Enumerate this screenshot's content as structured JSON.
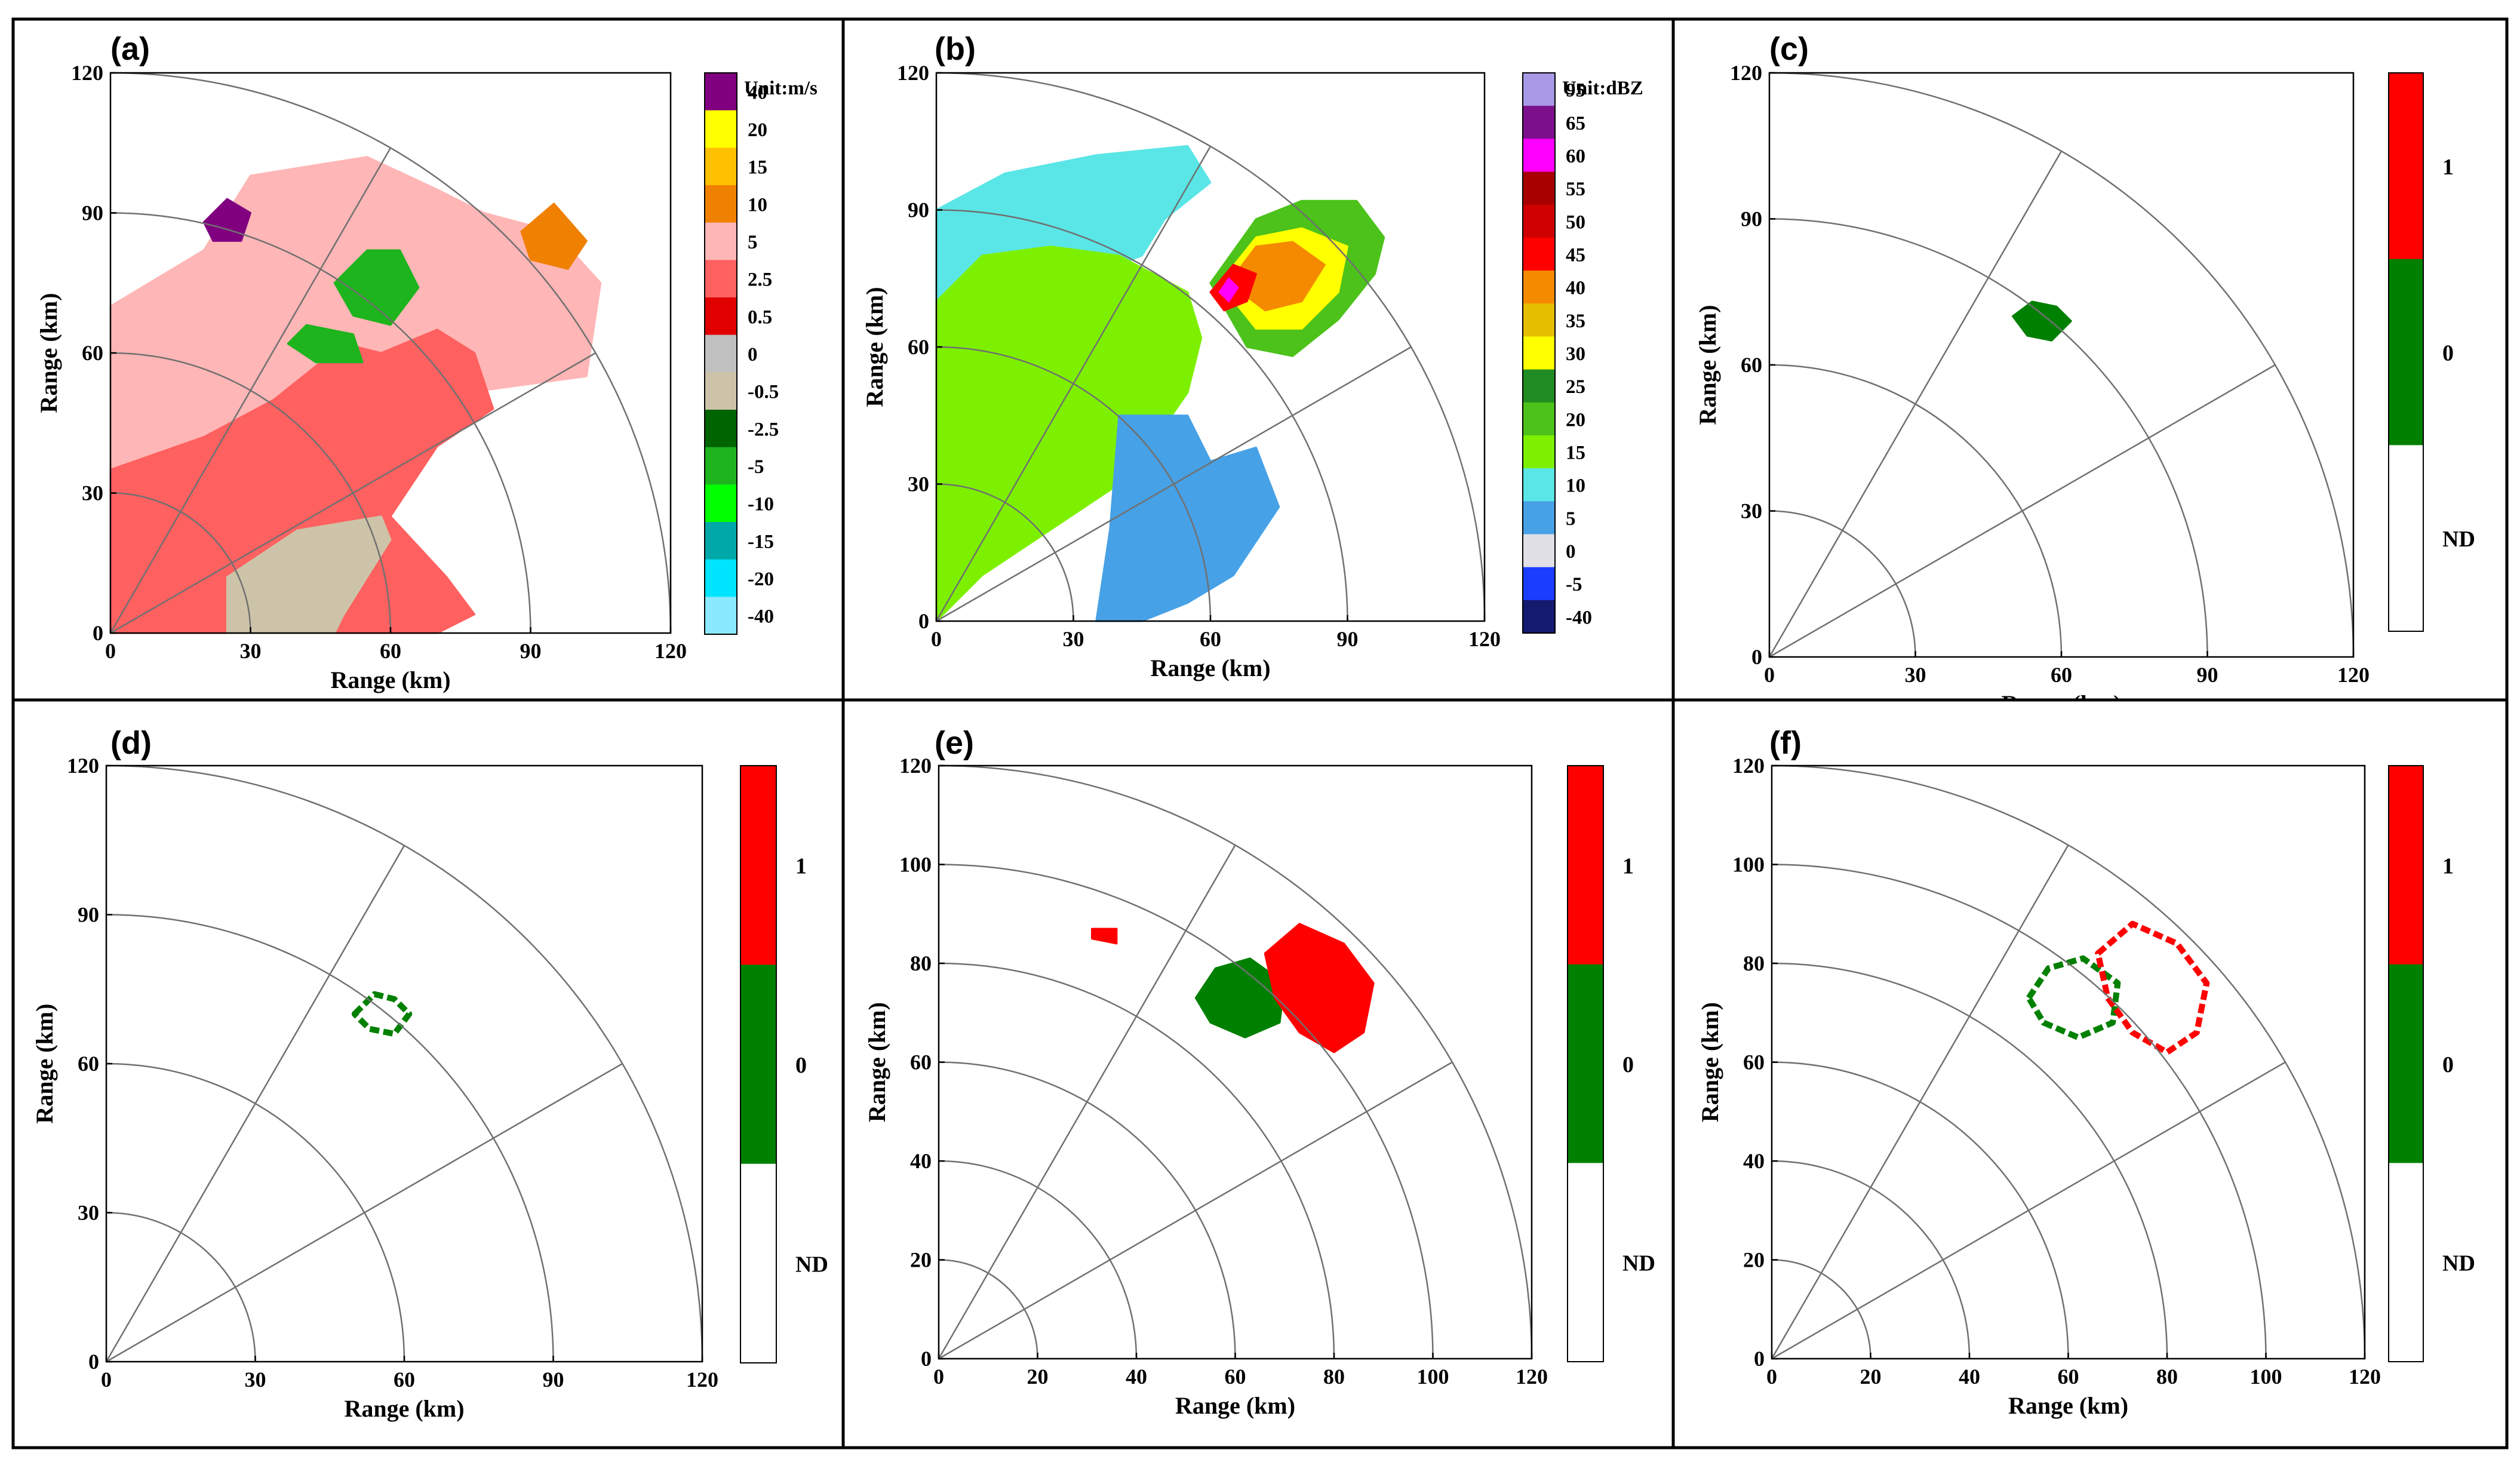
{
  "chart_data": [
    {
      "type": "heatmap",
      "panel": "(a)",
      "title": "",
      "xlabel": "Range (km)",
      "ylabel": "Range (km)",
      "xticks": [
        "0",
        "30",
        "60",
        "90",
        "120"
      ],
      "yticks": [
        "0",
        "30",
        "60",
        "90",
        "120"
      ],
      "xlim": [
        0,
        120
      ],
      "ylim": [
        0,
        120
      ],
      "range_rings_km": [
        30,
        60,
        90,
        120
      ],
      "radials_deg": [
        30,
        60
      ],
      "colorbar": {
        "unit_label": "Unit:m/s",
        "labels": [
          "40",
          "20",
          "15",
          "10",
          "5",
          "2.5",
          "0.5",
          "0",
          "-0.5",
          "-2.5",
          "-5",
          "-10",
          "-15",
          "-20",
          "-40"
        ],
        "colors": [
          "#800080",
          "#FFFF00",
          "#FFC000",
          "#F08000",
          "#FFB6B6",
          "#FF6060",
          "#E00000",
          "#C0C0C0",
          "#CDC3A8",
          "#006400",
          "#1EB41E",
          "#00FF00",
          "#00A8A8",
          "#00E5FF",
          "#8AE8FF"
        ]
      },
      "regions": [
        {
          "name": "light-pink-area",
          "color": "#FFB6B6",
          "points": [
            [
              0,
              70
            ],
            [
              20,
              82
            ],
            [
              30,
              98
            ],
            [
              55,
              102
            ],
            [
              70,
              95
            ],
            [
              80,
              90
            ],
            [
              95,
              86
            ],
            [
              105,
              75
            ],
            [
              102,
              55
            ],
            [
              80,
              52
            ],
            [
              62,
              48
            ],
            [
              50,
              38
            ],
            [
              30,
              30
            ],
            [
              15,
              20
            ],
            [
              0,
              20
            ]
          ]
        },
        {
          "name": "red-area",
          "color": "#FF6060",
          "points": [
            [
              0,
              35
            ],
            [
              20,
              42
            ],
            [
              35,
              50
            ],
            [
              50,
              62
            ],
            [
              58,
              60
            ],
            [
              70,
              65
            ],
            [
              78,
              60
            ],
            [
              82,
              48
            ],
            [
              70,
              40
            ],
            [
              60,
              25
            ],
            [
              72,
              12
            ],
            [
              78,
              4
            ],
            [
              70,
              0
            ],
            [
              0,
              0
            ]
          ]
        },
        {
          "name": "beige-area",
          "color": "#CDC3A8",
          "points": [
            [
              25,
              0
            ],
            [
              25,
              12
            ],
            [
              40,
              22
            ],
            [
              58,
              25
            ],
            [
              60,
              20
            ],
            [
              55,
              12
            ],
            [
              50,
              4
            ],
            [
              48,
              0
            ]
          ]
        },
        {
          "name": "orange-cell-ne",
          "color": "#F08000",
          "points": [
            [
              88,
              86
            ],
            [
              95,
              92
            ],
            [
              102,
              84
            ],
            [
              98,
              78
            ],
            [
              90,
              80
            ]
          ]
        },
        {
          "name": "purple-cell",
          "color": "#800080",
          "points": [
            [
              20,
              88
            ],
            [
              25,
              93
            ],
            [
              30,
              90
            ],
            [
              28,
              84
            ],
            [
              22,
              84
            ]
          ]
        },
        {
          "name": "green-cell",
          "color": "#1EB41E",
          "points": [
            [
              48,
              75
            ],
            [
              55,
              82
            ],
            [
              62,
              82
            ],
            [
              66,
              74
            ],
            [
              60,
              66
            ],
            [
              52,
              68
            ]
          ]
        },
        {
          "name": "green-cell-small",
          "color": "#1EB41E",
          "points": [
            [
              38,
              62
            ],
            [
              42,
              66
            ],
            [
              52,
              64
            ],
            [
              54,
              58
            ],
            [
              44,
              58
            ]
          ]
        }
      ]
    },
    {
      "type": "heatmap",
      "panel": "(b)",
      "title": "",
      "xlabel": "Range (km)",
      "ylabel": "Range (km)",
      "xticks": [
        "0",
        "30",
        "60",
        "90",
        "120"
      ],
      "yticks": [
        "0",
        "30",
        "60",
        "90",
        "120"
      ],
      "xlim": [
        0,
        120
      ],
      "ylim": [
        0,
        120
      ],
      "range_rings_km": [
        30,
        60,
        90,
        120
      ],
      "radials_deg": [
        30,
        60
      ],
      "colorbar": {
        "unit_label": "Unit:dBZ",
        "labels": [
          "95",
          "65",
          "60",
          "55",
          "50",
          "45",
          "40",
          "35",
          "30",
          "25",
          "20",
          "15",
          "10",
          "5",
          "0",
          "-5",
          "-40"
        ],
        "colors": [
          "#A899E6",
          "#7B0F8C",
          "#FF00FF",
          "#A80000",
          "#CE0000",
          "#FF0000",
          "#F58A00",
          "#E6BE00",
          "#FFFF00",
          "#218C21",
          "#4CC21A",
          "#7DF000",
          "#5AE6E6",
          "#47A1E6",
          "#E0E0E6",
          "#1A3DFF",
          "#141B6E"
        ]
      },
      "regions": [
        {
          "name": "cyan-area",
          "color": "#5AE6E6",
          "points": [
            [
              0,
              90
            ],
            [
              15,
              98
            ],
            [
              35,
              102
            ],
            [
              55,
              104
            ],
            [
              60,
              96
            ],
            [
              50,
              88
            ],
            [
              45,
              80
            ],
            [
              25,
              72
            ],
            [
              10,
              68
            ],
            [
              0,
              70
            ]
          ]
        },
        {
          "name": "blue-green-area",
          "color": "#7DF000",
          "points": [
            [
              0,
              70
            ],
            [
              10,
              80
            ],
            [
              25,
              82
            ],
            [
              40,
              80
            ],
            [
              55,
              72
            ],
            [
              58,
              62
            ],
            [
              55,
              50
            ],
            [
              48,
              40
            ],
            [
              40,
              30
            ],
            [
              25,
              20
            ],
            [
              10,
              10
            ],
            [
              0,
              0
            ]
          ]
        },
        {
          "name": "blue-echo",
          "color": "#47A1E6",
          "points": [
            [
              40,
              45
            ],
            [
              55,
              45
            ],
            [
              60,
              35
            ],
            [
              70,
              38
            ],
            [
              75,
              25
            ],
            [
              65,
              10
            ],
            [
              55,
              4
            ],
            [
              45,
              0
            ],
            [
              35,
              0
            ],
            [
              38,
              20
            ]
          ]
        },
        {
          "name": "storm-green",
          "color": "#4CC21A",
          "points": [
            [
              60,
              74
            ],
            [
              70,
              88
            ],
            [
              80,
              92
            ],
            [
              92,
              92
            ],
            [
              98,
              84
            ],
            [
              96,
              76
            ],
            [
              88,
              66
            ],
            [
              78,
              58
            ],
            [
              68,
              60
            ]
          ]
        },
        {
          "name": "storm-yellow",
          "color": "#FFFF00",
          "points": [
            [
              62,
              74
            ],
            [
              70,
              84
            ],
            [
              80,
              86
            ],
            [
              90,
              82
            ],
            [
              88,
              72
            ],
            [
              80,
              64
            ],
            [
              70,
              64
            ]
          ]
        },
        {
          "name": "storm-orange",
          "color": "#F58A00",
          "points": [
            [
              64,
              74
            ],
            [
              70,
              82
            ],
            [
              78,
              83
            ],
            [
              85,
              78
            ],
            [
              80,
              70
            ],
            [
              72,
              68
            ]
          ]
        },
        {
          "name": "storm-red",
          "color": "#FF0000",
          "points": [
            [
              60,
              72
            ],
            [
              65,
              78
            ],
            [
              70,
              76
            ],
            [
              68,
              70
            ],
            [
              63,
              68
            ]
          ]
        },
        {
          "name": "storm-magenta",
          "color": "#FF00FF",
          "points": [
            [
              62,
              72
            ],
            [
              64,
              75
            ],
            [
              66,
              73
            ],
            [
              64,
              70
            ]
          ]
        }
      ]
    },
    {
      "type": "heatmap",
      "panel": "(c)",
      "title": "",
      "xlabel": "Range (km)",
      "ylabel": "Range (km)",
      "xticks": [
        "0",
        "30",
        "60",
        "90",
        "120"
      ],
      "yticks": [
        "0",
        "30",
        "60",
        "90",
        "120"
      ],
      "xlim": [
        0,
        120
      ],
      "ylim": [
        0,
        120
      ],
      "range_rings_km": [
        30,
        60,
        90,
        120
      ],
      "radials_deg": [
        30,
        60
      ],
      "colorbar": {
        "labels": [
          "1",
          "0",
          "ND"
        ],
        "colors": [
          "#FF0000",
          "#008000",
          "#FFFFFF"
        ]
      },
      "regions": [
        {
          "name": "class-0-cell",
          "color": "#008000",
          "points": [
            [
              50,
              70
            ],
            [
              54,
              73
            ],
            [
              59,
              72
            ],
            [
              62,
              69
            ],
            [
              58,
              65
            ],
            [
              53,
              66
            ]
          ]
        }
      ]
    },
    {
      "type": "heatmap",
      "panel": "(d)",
      "title": "",
      "xlabel": "Range (km)",
      "ylabel": "Range (km)",
      "xticks": [
        "0",
        "30",
        "60",
        "90",
        "120"
      ],
      "yticks": [
        "0",
        "30",
        "60",
        "90",
        "120"
      ],
      "xlim": [
        0,
        120
      ],
      "ylim": [
        0,
        120
      ],
      "range_rings_km": [
        30,
        60,
        90,
        120
      ],
      "radials_deg": [
        30,
        60
      ],
      "colorbar": {
        "labels": [
          "1",
          "0",
          "ND"
        ],
        "colors": [
          "#FF0000",
          "#008000",
          "#FFFFFF"
        ]
      },
      "regions": [
        {
          "name": "class-0-outline",
          "color": "#008000",
          "outline": true,
          "points": [
            [
              50,
              70
            ],
            [
              54,
              74
            ],
            [
              58,
              73
            ],
            [
              61,
              70
            ],
            [
              58,
              66
            ],
            [
              53,
              67
            ]
          ]
        }
      ]
    },
    {
      "type": "heatmap",
      "panel": "(e)",
      "title": "",
      "xlabel": "Range (km)",
      "ylabel": "Range (km)",
      "xticks": [
        "0",
        "20",
        "40",
        "60",
        "80",
        "100",
        "120"
      ],
      "yticks": [
        "0",
        "20",
        "40",
        "60",
        "80",
        "100",
        "120"
      ],
      "xlim": [
        0,
        120
      ],
      "ylim": [
        0,
        120
      ],
      "range_rings_km": [
        20,
        40,
        60,
        80,
        100,
        120
      ],
      "radials_deg": [
        30,
        60
      ],
      "colorbar": {
        "labels": [
          "1",
          "0",
          "ND"
        ],
        "colors": [
          "#FF0000",
          "#008000",
          "#FFFFFF"
        ]
      },
      "regions": [
        {
          "name": "class-0-cell",
          "color": "#008000",
          "points": [
            [
              52,
              73
            ],
            [
              56,
              79
            ],
            [
              63,
              81
            ],
            [
              70,
              76
            ],
            [
              69,
              68
            ],
            [
              62,
              65
            ],
            [
              55,
              68
            ]
          ]
        },
        {
          "name": "class-1-cell",
          "color": "#FF0000",
          "points": [
            [
              66,
              82
            ],
            [
              73,
              88
            ],
            [
              82,
              84
            ],
            [
              88,
              76
            ],
            [
              86,
              66
            ],
            [
              80,
              62
            ],
            [
              73,
              66
            ],
            [
              68,
              73
            ]
          ]
        },
        {
          "name": "class-1-small",
          "color": "#FF0000",
          "points": [
            [
              31,
              87
            ],
            [
              36,
              87
            ],
            [
              36,
              84
            ],
            [
              31,
              85
            ]
          ]
        }
      ]
    },
    {
      "type": "heatmap",
      "panel": "(f)",
      "title": "",
      "xlabel": "Range (km)",
      "ylabel": "Range (km)",
      "xticks": [
        "0",
        "20",
        "40",
        "60",
        "80",
        "100",
        "120"
      ],
      "yticks": [
        "0",
        "20",
        "40",
        "60",
        "80",
        "100",
        "120"
      ],
      "xlim": [
        0,
        120
      ],
      "ylim": [
        0,
        120
      ],
      "range_rings_km": [
        20,
        40,
        60,
        80,
        100,
        120
      ],
      "radials_deg": [
        30,
        60
      ],
      "colorbar": {
        "labels": [
          "1",
          "0",
          "ND"
        ],
        "colors": [
          "#FF0000",
          "#008000",
          "#FFFFFF"
        ]
      },
      "regions": [
        {
          "name": "class-0-outline",
          "color": "#008000",
          "outline": true,
          "points": [
            [
              52,
              73
            ],
            [
              56,
              79
            ],
            [
              63,
              81
            ],
            [
              70,
              76
            ],
            [
              69,
              68
            ],
            [
              62,
              65
            ],
            [
              55,
              68
            ]
          ]
        },
        {
          "name": "class-1-outline",
          "color": "#FF0000",
          "outline": true,
          "points": [
            [
              66,
              82
            ],
            [
              73,
              88
            ],
            [
              82,
              84
            ],
            [
              88,
              76
            ],
            [
              86,
              66
            ],
            [
              80,
              62
            ],
            [
              73,
              66
            ],
            [
              68,
              73
            ]
          ]
        }
      ]
    }
  ]
}
